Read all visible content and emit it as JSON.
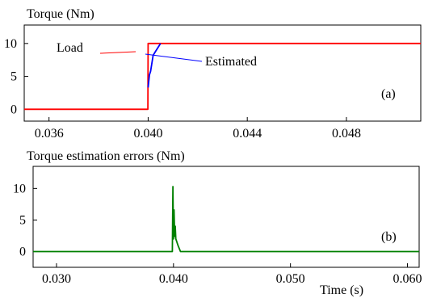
{
  "chart_data": [
    {
      "type": "line",
      "title": "Torque (Nm)",
      "panel_label": "(a)",
      "xlim": [
        0.035,
        0.051
      ],
      "ylim": [
        -1.8,
        12.8
      ],
      "x_ticks": [
        0.036,
        0.04,
        0.044,
        0.048
      ],
      "x_tick_labels": [
        "0.036",
        "0.040",
        "0.044",
        "0.048"
      ],
      "y_ticks": [
        0,
        5,
        10
      ],
      "y_tick_labels": [
        "0",
        "5",
        "10"
      ],
      "grid": false,
      "series": [
        {
          "name": "Load",
          "color": "#ff0000",
          "x": [
            0.035,
            0.03999,
            0.04,
            0.051
          ],
          "y": [
            0,
            0,
            10,
            10
          ]
        },
        {
          "name": "Estimated",
          "color": "#0000ff",
          "x": [
            0.04,
            0.04005,
            0.0401,
            0.0402,
            0.0403,
            0.0405
          ],
          "y": [
            3.3,
            5.2,
            5.8,
            8.2,
            8.8,
            10
          ]
        }
      ]
    },
    {
      "type": "line",
      "title": "Torque estimation errors (Nm)",
      "panel_label": "(b)",
      "xlabel": "Time (s)",
      "xlim": [
        0.028,
        0.061
      ],
      "ylim": [
        -2.5,
        13.5
      ],
      "x_ticks": [
        0.03,
        0.04,
        0.05,
        0.06
      ],
      "x_tick_labels": [
        "0.030",
        "0.040",
        "0.050",
        "0.060"
      ],
      "y_ticks": [
        0,
        5,
        10
      ],
      "y_tick_labels": [
        "0",
        "5",
        "10"
      ],
      "grid": false,
      "series": [
        {
          "color": "#008000",
          "x": [
            0.028,
            0.0399,
            0.03995,
            0.04,
            0.04005,
            0.0401,
            0.04015,
            0.0402,
            0.0404,
            0.0406,
            0.061
          ],
          "y": [
            0,
            0,
            10.3,
            2.0,
            6.6,
            2.4,
            4.0,
            2.0,
            0.9,
            0,
            0
          ]
        }
      ]
    }
  ]
}
